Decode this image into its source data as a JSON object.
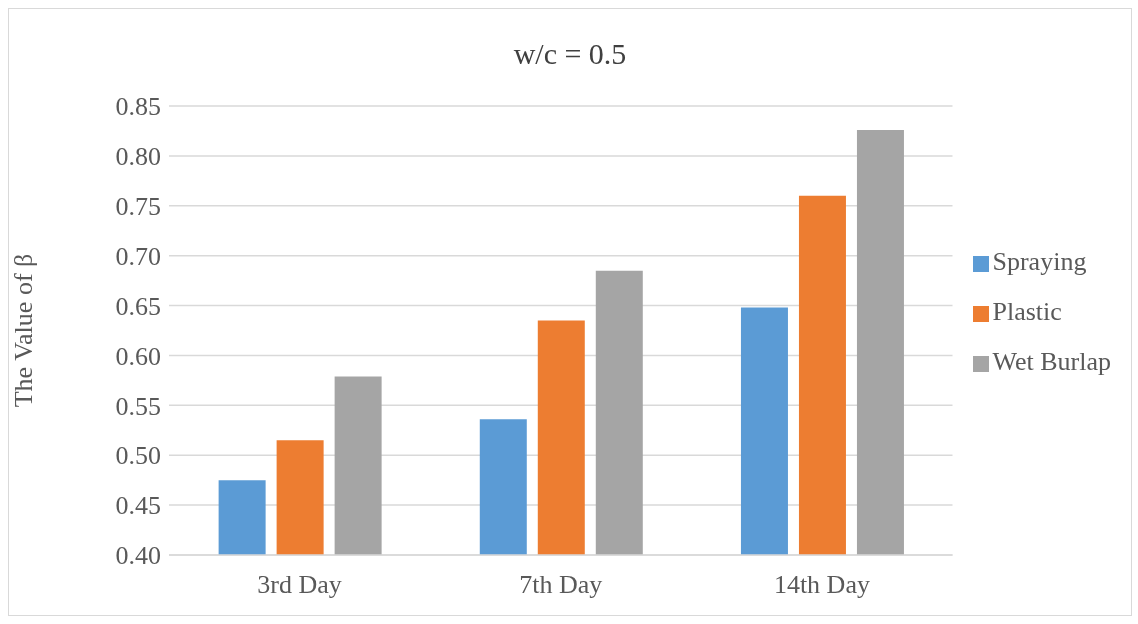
{
  "chart_data": {
    "type": "bar",
    "title": "w/c = 0.5",
    "ylabel": "The Value of β",
    "categories": [
      "3rd Day",
      "7th Day",
      "14th Day"
    ],
    "series": [
      {
        "name": "Spraying",
        "color": "#5b9bd5",
        "values": [
          0.475,
          0.536,
          0.648
        ]
      },
      {
        "name": "Plastic",
        "color": "#ed7d31",
        "values": [
          0.515,
          0.635,
          0.76
        ]
      },
      {
        "name": "Wet Burlap",
        "color": "#a5a5a5",
        "values": [
          0.579,
          0.685,
          0.826
        ]
      }
    ],
    "ylim": [
      0.4,
      0.85
    ],
    "yticks": [
      {
        "value": 0.4,
        "label": "0.40"
      },
      {
        "value": 0.45,
        "label": "0.45"
      },
      {
        "value": 0.5,
        "label": "0.50"
      },
      {
        "value": 0.55,
        "label": "0.55"
      },
      {
        "value": 0.6,
        "label": "0.60"
      },
      {
        "value": 0.65,
        "label": "0.65"
      },
      {
        "value": 0.7,
        "label": "0.70"
      },
      {
        "value": 0.75,
        "label": "0.75"
      },
      {
        "value": 0.8,
        "label": "0.80"
      },
      {
        "value": 0.85,
        "label": "0.85"
      }
    ],
    "grid": "y",
    "legend": "right"
  }
}
